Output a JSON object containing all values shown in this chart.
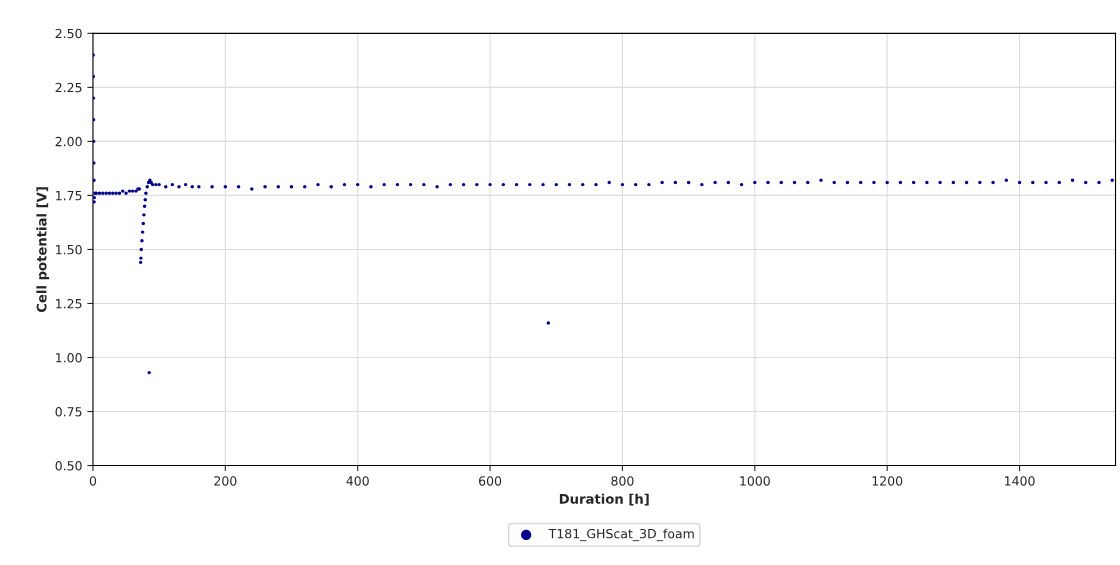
{
  "chart_data": {
    "type": "scatter",
    "xlabel": "Duration [h]",
    "ylabel": "Cell potential [V]",
    "xlim": [
      0,
      1545
    ],
    "ylim": [
      0.5,
      2.5
    ],
    "xticks": [
      0,
      200,
      400,
      600,
      800,
      1000,
      1200,
      1400
    ],
    "yticks": [
      {
        "value": 0.5,
        "label": "0.50"
      },
      {
        "value": 0.75,
        "label": "0.75"
      },
      {
        "value": 1.0,
        "label": "1.00"
      },
      {
        "value": 1.25,
        "label": "1.25"
      },
      {
        "value": 1.5,
        "label": "1.50"
      },
      {
        "value": 1.75,
        "label": "1.75"
      },
      {
        "value": 2.0,
        "label": "2.00"
      },
      {
        "value": 2.25,
        "label": "2.25"
      },
      {
        "value": 2.5,
        "label": "2.50"
      }
    ],
    "grid": true,
    "legend": "bottom",
    "marker": "circle",
    "series": [
      {
        "name": "T181_GHScat_3D_foam",
        "color": "#00008b",
        "x": [
          0.3,
          0.5,
          0.7,
          0.9,
          1.1,
          1.3,
          1.5,
          1.7,
          2,
          3,
          5,
          10,
          15,
          20,
          25,
          30,
          35,
          40,
          45,
          50,
          55,
          60,
          65,
          68,
          70,
          72,
          72.5,
          73,
          74,
          75,
          76,
          77,
          78,
          79,
          80,
          82,
          84,
          85,
          86,
          88,
          90,
          95,
          100,
          110,
          120,
          130,
          140,
          150,
          160,
          180,
          200,
          220,
          240,
          260,
          280,
          300,
          320,
          340,
          360,
          380,
          400,
          420,
          440,
          460,
          480,
          500,
          520,
          540,
          560,
          580,
          600,
          620,
          640,
          660,
          680,
          688,
          700,
          720,
          740,
          760,
          780,
          800,
          820,
          840,
          860,
          880,
          900,
          920,
          940,
          960,
          980,
          1000,
          1020,
          1040,
          1060,
          1080,
          1100,
          1120,
          1140,
          1160,
          1180,
          1200,
          1220,
          1240,
          1260,
          1280,
          1300,
          1320,
          1340,
          1360,
          1380,
          1400,
          1420,
          1440,
          1460,
          1480,
          1500,
          1520,
          1540
        ],
        "values": [
          2.4,
          2.3,
          2.2,
          2.1,
          2.0,
          1.9,
          1.82,
          1.72,
          1.74,
          1.76,
          1.76,
          1.76,
          1.76,
          1.76,
          1.76,
          1.76,
          1.76,
          1.76,
          1.77,
          1.76,
          1.77,
          1.77,
          1.77,
          1.78,
          1.78,
          1.44,
          1.46,
          1.5,
          1.54,
          1.58,
          1.62,
          1.66,
          1.7,
          1.73,
          1.76,
          1.79,
          1.81,
          0.93,
          1.82,
          1.81,
          1.8,
          1.8,
          1.8,
          1.79,
          1.8,
          1.79,
          1.8,
          1.79,
          1.79,
          1.79,
          1.79,
          1.79,
          1.78,
          1.79,
          1.79,
          1.79,
          1.79,
          1.8,
          1.79,
          1.8,
          1.8,
          1.79,
          1.8,
          1.8,
          1.8,
          1.8,
          1.79,
          1.8,
          1.8,
          1.8,
          1.8,
          1.8,
          1.8,
          1.8,
          1.8,
          1.16,
          1.8,
          1.8,
          1.8,
          1.8,
          1.81,
          1.8,
          1.8,
          1.8,
          1.81,
          1.81,
          1.81,
          1.8,
          1.81,
          1.81,
          1.8,
          1.81,
          1.81,
          1.81,
          1.81,
          1.81,
          1.82,
          1.81,
          1.81,
          1.81,
          1.81,
          1.81,
          1.81,
          1.81,
          1.81,
          1.81,
          1.81,
          1.81,
          1.81,
          1.81,
          1.82,
          1.81,
          1.81,
          1.81,
          1.81,
          1.82,
          1.81,
          1.81,
          1.82
        ]
      }
    ]
  }
}
